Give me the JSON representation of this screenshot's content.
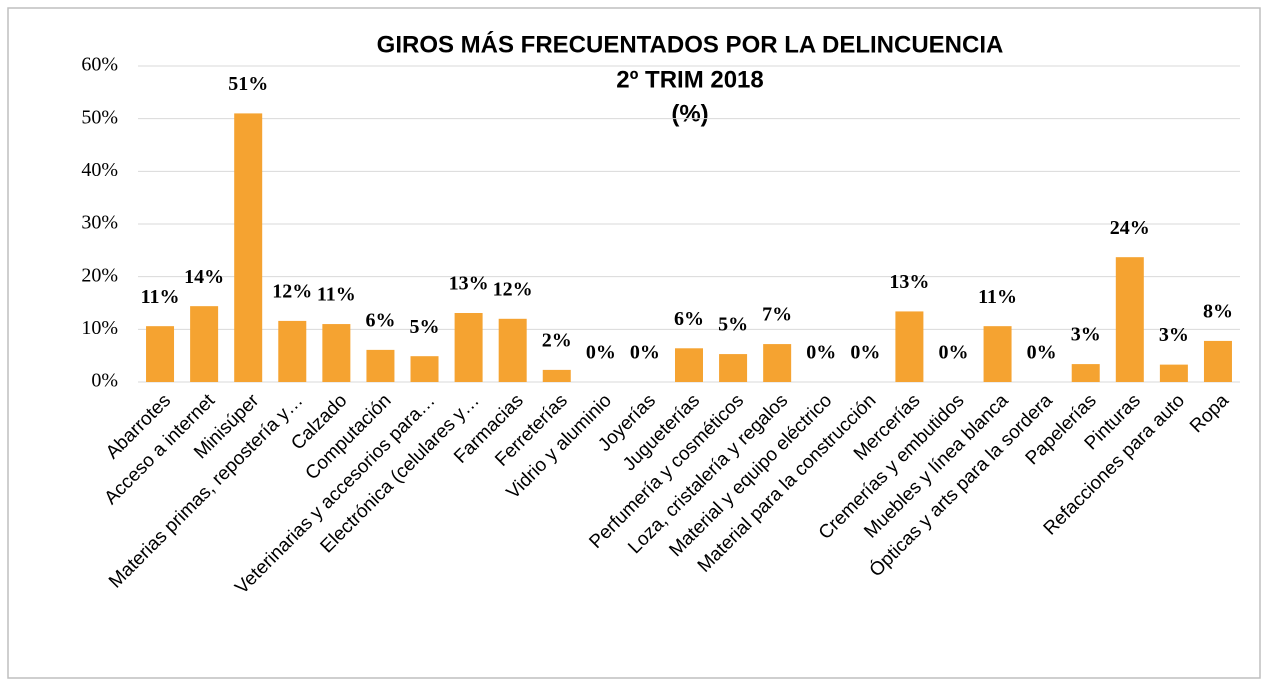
{
  "chart_data": {
    "type": "bar",
    "title": "GIROS MÁS FRECUENTADOS POR LA DELINCUENCIA",
    "subtitle": "2º TRIM 2018",
    "annotation": "(%)",
    "categories": [
      "Abarrotes",
      "Acceso a internet",
      "Minisúper",
      "Materias primas, repostería y…",
      "Calzado",
      "Computación",
      "Veterinarias y accesorios para…",
      "Electrónica (celulares y…",
      "Farmacias",
      "Ferreterías",
      "Vidrio y aluminio",
      "Joyerías",
      "Jugueterías",
      "Perfumería y cosméticos",
      "Loza, cristalería y regalos",
      "Material y equipo eléctrico",
      "Material para la construcción",
      "Mercerías",
      "Cremerías y embutidos",
      "Muebles y línea blanca",
      "Ópticas y arts para la sordera",
      "Papelerías",
      "Pinturas",
      "Refacciones para auto",
      "Ropa"
    ],
    "values": [
      10.6,
      14.4,
      51.0,
      11.6,
      11.0,
      6.1,
      4.9,
      13.1,
      12.0,
      2.3,
      0,
      0,
      6.4,
      5.3,
      7.2,
      0,
      0,
      13.4,
      0,
      10.6,
      0,
      3.4,
      23.7,
      3.3,
      7.8
    ],
    "value_labels": [
      "11%",
      "14%",
      "51%",
      "12%",
      "11%",
      "6%",
      "5%",
      "13%",
      "12%",
      "2%",
      "0%",
      "0%",
      "6%",
      "5%",
      "7%",
      "0%",
      "0%",
      "13%",
      "0%",
      "11%",
      "0%",
      "3%",
      "24%",
      "3%",
      "8%"
    ],
    "color": "#f5a331",
    "ylim": [
      0,
      60
    ],
    "yticks": [
      {
        "value": 0,
        "label": "0%"
      },
      {
        "value": 10,
        "label": "10%"
      },
      {
        "value": 20,
        "label": "20%"
      },
      {
        "value": 30,
        "label": "30%"
      },
      {
        "value": 40,
        "label": "40%"
      },
      {
        "value": 50,
        "label": "50%"
      },
      {
        "value": 60,
        "label": "60%"
      }
    ],
    "grid": true
  }
}
